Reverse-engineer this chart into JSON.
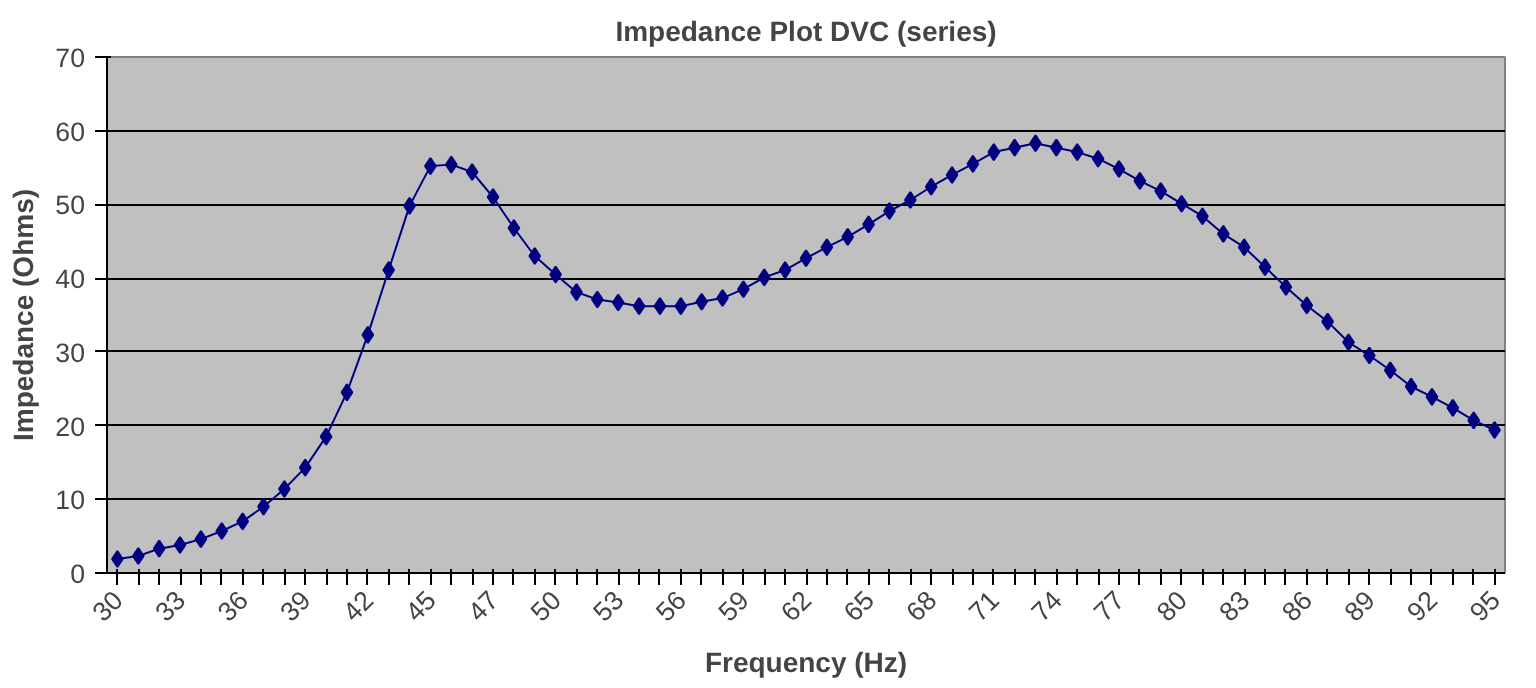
{
  "chart_data": {
    "type": "line",
    "title": "Impedance Plot DVC (series)",
    "xlabel": "Frequency (Hz)",
    "ylabel": "Impedance (Ohms)",
    "categories": [
      "30",
      null,
      null,
      "33",
      null,
      null,
      "36",
      null,
      null,
      "39",
      null,
      null,
      "42",
      null,
      null,
      "45",
      null,
      null,
      "47",
      null,
      null,
      "50",
      null,
      null,
      "53",
      null,
      null,
      "56",
      null,
      null,
      "59",
      null,
      null,
      "62",
      null,
      null,
      "65",
      null,
      null,
      "68",
      null,
      null,
      "71",
      null,
      null,
      "74",
      null,
      null,
      "77",
      null,
      null,
      "80",
      null,
      null,
      "83",
      null,
      null,
      "86",
      null,
      null,
      "89",
      null,
      null,
      "92",
      null,
      null,
      "95"
    ],
    "series": [
      {
        "color": "#000080",
        "values": [
          1.9,
          2.3,
          3.3,
          3.8,
          4.6,
          5.7,
          7.0,
          9.0,
          11.4,
          14.3,
          18.5,
          24.5,
          32.3,
          41.1,
          49.8,
          55.2,
          55.4,
          54.4,
          51.0,
          46.8,
          43.0,
          40.5,
          38.1,
          37.1,
          36.7,
          36.2,
          36.2,
          36.2,
          36.8,
          37.3,
          38.5,
          40.1,
          41.1,
          42.7,
          44.2,
          45.6,
          47.3,
          49.1,
          50.6,
          52.4,
          54.0,
          55.5,
          57.1,
          57.7,
          58.3,
          57.7,
          57.1,
          56.2,
          54.8,
          53.2,
          51.8,
          50.1,
          48.4,
          46.0,
          44.2,
          41.5,
          38.8,
          36.3,
          34.1,
          31.3,
          29.5,
          27.5,
          25.3,
          23.9,
          22.4,
          20.7,
          19.4
        ]
      }
    ],
    "ylim": [
      0,
      70
    ],
    "yticks": [
      0,
      10,
      20,
      30,
      40,
      50,
      60,
      70
    ],
    "grid": "y",
    "marker": "diamond",
    "line_style": "solid"
  }
}
